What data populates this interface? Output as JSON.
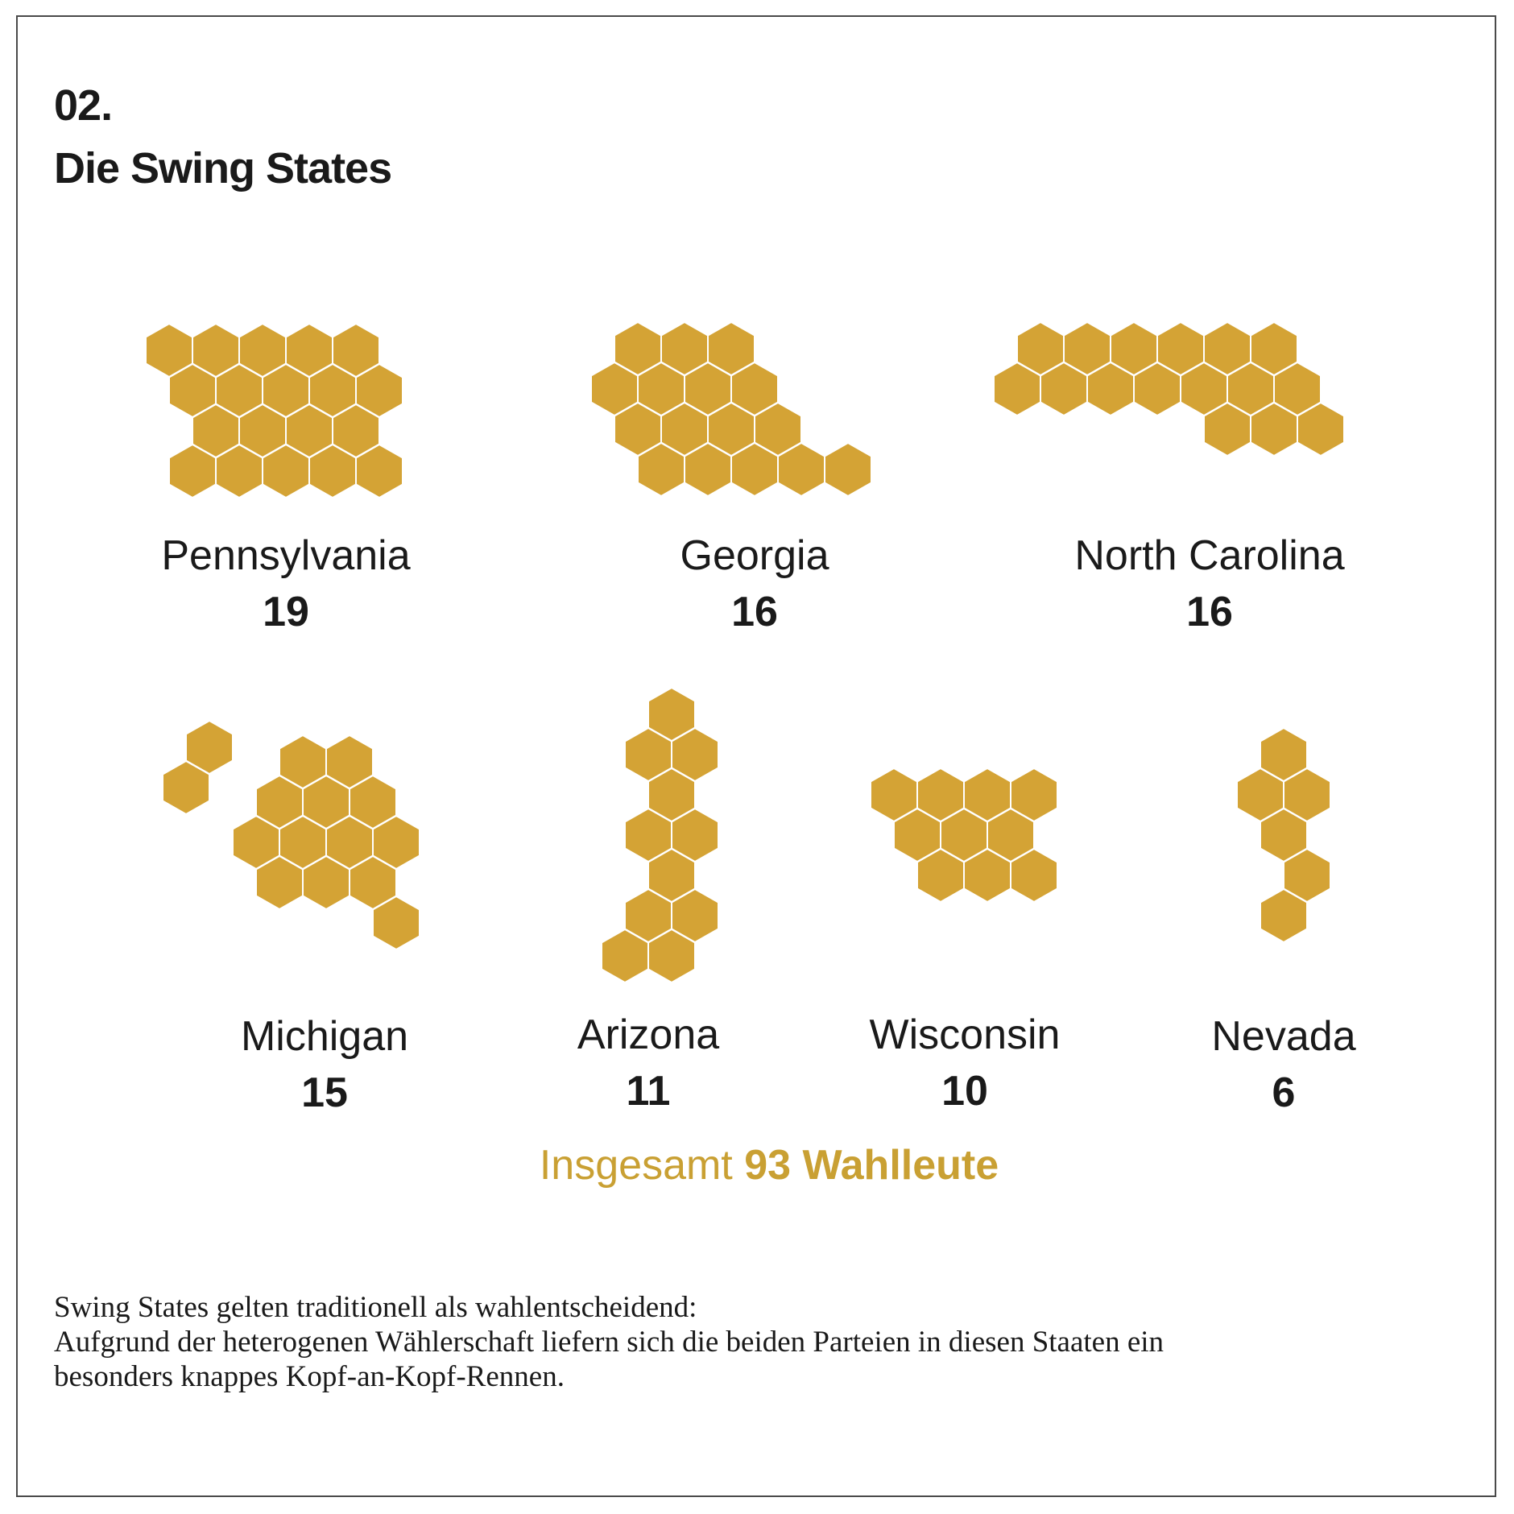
{
  "heading": {
    "number": "02.",
    "title": "Die Swing States"
  },
  "colors": {
    "hexagon": "#d4a335",
    "total_accent": "#c9a033",
    "text": "#1a1a1a"
  },
  "chart_data": {
    "type": "unit",
    "unit": "Wahlleute",
    "states": [
      {
        "name": "Pennsylvania",
        "value": 19
      },
      {
        "name": "Georgia",
        "value": 16
      },
      {
        "name": "North Carolina",
        "value": 16
      },
      {
        "name": "Michigan",
        "value": 15
      },
      {
        "name": "Arizona",
        "value": 11
      },
      {
        "name": "Wisconsin",
        "value": 10
      },
      {
        "name": "Nevada",
        "value": 6
      }
    ],
    "total": {
      "prefix": "Insgesamt",
      "value": "93 Wahlleute"
    }
  },
  "footnote": {
    "line1": "Swing States gelten traditionell als wahlentscheidend:",
    "line2": "Aufgrund der heterogenen Wählerschaft liefern sich die beiden Parteien in diesen Staaten ein",
    "line3": "besonders knappes Kopf-an-Kopf-Rennen."
  }
}
